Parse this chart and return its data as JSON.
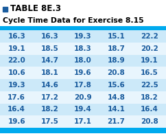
{
  "title_prefix": "TABLE 8E.3",
  "subtitle": "Cycle Time Data for Exercise 8.15",
  "rows": [
    [
      16.3,
      16.3,
      19.3,
      15.1,
      22.2
    ],
    [
      19.1,
      18.5,
      18.3,
      18.7,
      20.2
    ],
    [
      22.0,
      14.7,
      18.0,
      18.9,
      19.1
    ],
    [
      10.6,
      18.1,
      19.6,
      20.8,
      16.5
    ],
    [
      19.3,
      14.6,
      17.8,
      15.6,
      22.5
    ],
    [
      17.6,
      17.2,
      20.9,
      14.8,
      18.2
    ],
    [
      16.4,
      18.2,
      19.4,
      14.1,
      16.4
    ],
    [
      19.6,
      17.5,
      17.1,
      21.7,
      20.8
    ]
  ],
  "row_bg_shaded": "#cce9f9",
  "row_bg_light": "#e8f5fd",
  "table_bg": "#e8f5fd",
  "text_color": "#1a5c9e",
  "title_color": "#000000",
  "subtitle_color": "#000000",
  "border_color": "#00aaee",
  "square_color": "#1a5c9e",
  "title_fontsize": 8.5,
  "subtitle_fontsize": 7.8,
  "data_fontsize": 7.5
}
